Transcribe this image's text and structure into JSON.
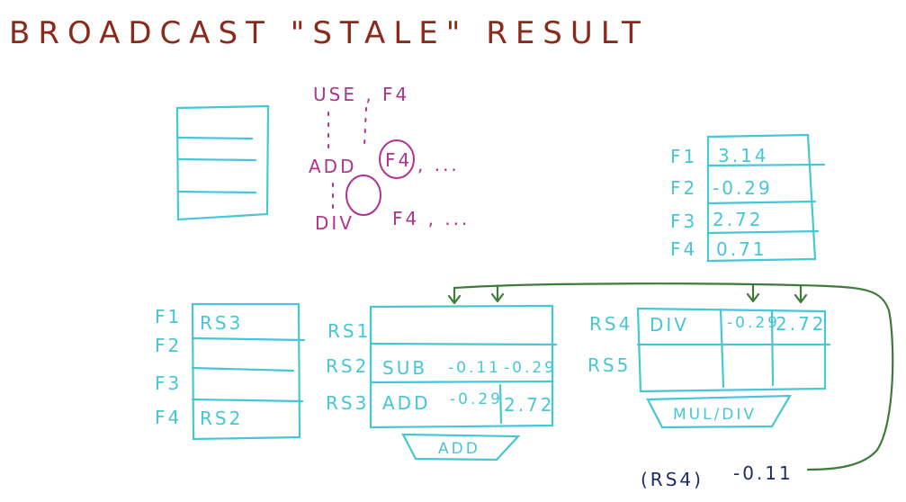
{
  "title": "BROADCAST \"STALE\" RESULT",
  "code": {
    "line1": "USE , F4",
    "line2_op": "ADD",
    "line2_reg": "F4",
    "line2_tail": ", ...",
    "line3_op": "DIV",
    "line3_tail": "F4 , ..."
  },
  "reg_file": {
    "rows": [
      {
        "name": "F1",
        "value": "3.14"
      },
      {
        "name": "F2",
        "value": "-0.29"
      },
      {
        "name": "F3",
        "value": "2.72"
      },
      {
        "name": "F4",
        "value": "0.71"
      }
    ]
  },
  "rat": {
    "rows": [
      {
        "name": "F1",
        "value": "RS3"
      },
      {
        "name": "F2",
        "value": ""
      },
      {
        "name": "F3",
        "value": ""
      },
      {
        "name": "F4",
        "value": "RS2"
      }
    ]
  },
  "rs_add": {
    "rows": [
      {
        "name": "RS1",
        "op": "",
        "v1": "",
        "v2": ""
      },
      {
        "name": "RS2",
        "op": "SUB",
        "v1": "-0.11",
        "v2": "-0.29"
      },
      {
        "name": "RS3",
        "op": "ADD",
        "v1": "-0.29",
        "v2": "2.72"
      }
    ],
    "unit": "ADD"
  },
  "rs_mul": {
    "rows": [
      {
        "name": "RS4",
        "op": "DIV",
        "v1": "-0.29",
        "v2": "2.72"
      },
      {
        "name": "RS5",
        "op": "",
        "v1": "",
        "v2": ""
      }
    ],
    "unit": "MUL/DIV"
  },
  "broadcast": {
    "tag": "(RS4)",
    "value": "-0.11"
  },
  "colors": {
    "title": "#8b2a1a",
    "tables": "#46c7d6",
    "code": "#b0338e",
    "bus": "#3e7b3a",
    "broadcast": "#1f2a66"
  }
}
